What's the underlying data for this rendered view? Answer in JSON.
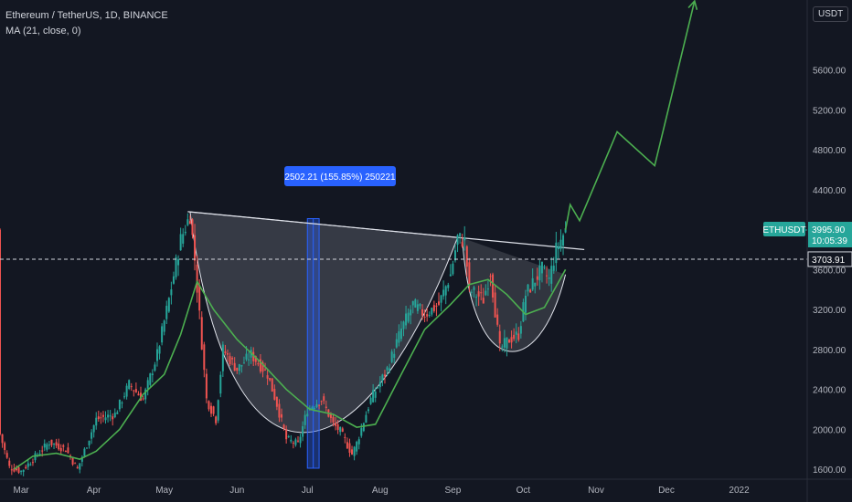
{
  "header": {
    "title": "Ethereum / TetherUS, 1D, BINANCE",
    "indicator": "MA (21, close, 0)"
  },
  "currency_label": "USDT",
  "price_tags": {
    "symbol": "ETHUSDT",
    "last_price": "3995.90",
    "countdown": "10:05:39",
    "line_price": "3703.91"
  },
  "measure_label": "2502.21 (155.85%) 250221",
  "colors": {
    "background": "#131722",
    "up": "#26a69a",
    "down": "#ef5350",
    "ma": "#4caf50",
    "projection": "#4caf50",
    "measure": "#2962ff",
    "text": "#b2b5be"
  },
  "chart_data": {
    "type": "candlestick",
    "title": "Ethereum / TetherUS, 1D, BINANCE",
    "yaxis": {
      "ticks": [
        1600,
        2000,
        2400,
        2800,
        3200,
        3600,
        4000,
        4400,
        4800,
        5200,
        5600
      ],
      "tick_labels": [
        "1600.00",
        "2000.00",
        "2400.00",
        "2800.00",
        "3200.00",
        "3600.00",
        "4000.00",
        "4400.00",
        "4800.00",
        "5200.00",
        "5600.00"
      ],
      "range": [
        1500,
        6300
      ]
    },
    "xaxis": {
      "ticks": [
        "2021-03-01",
        "2021-04-01",
        "2021-05-01",
        "2021-06-01",
        "2021-07-01",
        "2021-08-01",
        "2021-09-01",
        "2021-10-01",
        "2021-11-01",
        "2021-12-01",
        "2022-01-01"
      ],
      "tick_labels": [
        "Mar",
        "Apr",
        "May",
        "Jun",
        "Jul",
        "Aug",
        "Sep",
        "Oct",
        "Nov",
        "Dec",
        "2022"
      ],
      "range": [
        "2021-02-20",
        "2022-01-30"
      ]
    },
    "price_path": [
      [
        "2021-02-20",
        1950
      ],
      [
        "2021-02-24",
        1620
      ],
      [
        "2021-03-01",
        1580
      ],
      [
        "2021-03-06",
        1700
      ],
      [
        "2021-03-13",
        1870
      ],
      [
        "2021-03-20",
        1800
      ],
      [
        "2021-03-25",
        1600
      ],
      [
        "2021-04-02",
        2100
      ],
      [
        "2021-04-10",
        2150
      ],
      [
        "2021-04-16",
        2450
      ],
      [
        "2021-04-22",
        2300
      ],
      [
        "2021-04-28",
        2750
      ],
      [
        "2021-05-03",
        3300
      ],
      [
        "2021-05-08",
        3900
      ],
      [
        "2021-05-12",
        4150
      ],
      [
        "2021-05-14",
        3700
      ],
      [
        "2021-05-19",
        2300
      ],
      [
        "2021-05-23",
        2100
      ],
      [
        "2021-05-26",
        2800
      ],
      [
        "2021-06-01",
        2600
      ],
      [
        "2021-06-07",
        2750
      ],
      [
        "2021-06-14",
        2550
      ],
      [
        "2021-06-18",
        2250
      ],
      [
        "2021-06-22",
        1900
      ],
      [
        "2021-06-27",
        1850
      ],
      [
        "2021-07-01",
        2200
      ],
      [
        "2021-07-07",
        2300
      ],
      [
        "2021-07-12",
        2050
      ],
      [
        "2021-07-15",
        1980
      ],
      [
        "2021-07-20",
        1750
      ],
      [
        "2021-07-22",
        1860
      ],
      [
        "2021-07-28",
        2300
      ],
      [
        "2021-08-04",
        2600
      ],
      [
        "2021-08-10",
        3000
      ],
      [
        "2021-08-15",
        3250
      ],
      [
        "2021-08-20",
        3150
      ],
      [
        "2021-08-26",
        3250
      ],
      [
        "2021-08-31",
        3550
      ],
      [
        "2021-09-03",
        3920
      ],
      [
        "2021-09-06",
        3880
      ],
      [
        "2021-09-08",
        3400
      ],
      [
        "2021-09-14",
        3300
      ],
      [
        "2021-09-17",
        3580
      ],
      [
        "2021-09-21",
        2800
      ],
      [
        "2021-09-25",
        2900
      ],
      [
        "2021-09-29",
        2950
      ],
      [
        "2021-10-02",
        3350
      ],
      [
        "2021-10-06",
        3500
      ],
      [
        "2021-10-09",
        3600
      ],
      [
        "2021-10-12",
        3500
      ],
      [
        "2021-10-15",
        3800
      ],
      [
        "2021-10-19",
        3995.9
      ]
    ],
    "ma_21": [
      [
        "2021-02-26",
        1600
      ],
      [
        "2021-03-06",
        1730
      ],
      [
        "2021-03-16",
        1760
      ],
      [
        "2021-03-26",
        1700
      ],
      [
        "2021-04-02",
        1780
      ],
      [
        "2021-04-12",
        2000
      ],
      [
        "2021-04-22",
        2350
      ],
      [
        "2021-05-01",
        2550
      ],
      [
        "2021-05-08",
        2950
      ],
      [
        "2021-05-15",
        3480
      ],
      [
        "2021-05-22",
        3200
      ],
      [
        "2021-06-01",
        2900
      ],
      [
        "2021-06-12",
        2650
      ],
      [
        "2021-06-22",
        2400
      ],
      [
        "2021-07-02",
        2200
      ],
      [
        "2021-07-12",
        2150
      ],
      [
        "2021-07-22",
        2020
      ],
      [
        "2021-07-30",
        2050
      ],
      [
        "2021-08-10",
        2550
      ],
      [
        "2021-08-20",
        3000
      ],
      [
        "2021-08-31",
        3250
      ],
      [
        "2021-09-08",
        3450
      ],
      [
        "2021-09-16",
        3500
      ],
      [
        "2021-09-24",
        3350
      ],
      [
        "2021-10-02",
        3150
      ],
      [
        "2021-10-10",
        3220
      ],
      [
        "2021-10-19",
        3600
      ]
    ],
    "projection": [
      [
        "2021-10-19",
        3995.9
      ],
      [
        "2021-10-21",
        4250
      ],
      [
        "2021-10-25",
        4090
      ],
      [
        "2021-11-10",
        4980
      ],
      [
        "2021-11-26",
        4640
      ],
      [
        "2021-12-13",
        6290
      ]
    ],
    "measure": {
      "from_date": "2021-07-01",
      "to_date": "2021-07-06",
      "from_price": 1610,
      "to_price": 4110,
      "change": 2502.21,
      "percent": 155.85,
      "label": "2502.21 (155.85%) 250221"
    },
    "neckline": [
      [
        "2021-05-11",
        4180
      ],
      [
        "2021-10-27",
        3800
      ]
    ],
    "horizontal_line": 3703.91,
    "last_price": 3995.9,
    "pattern": "cup and handle",
    "grid": false
  }
}
